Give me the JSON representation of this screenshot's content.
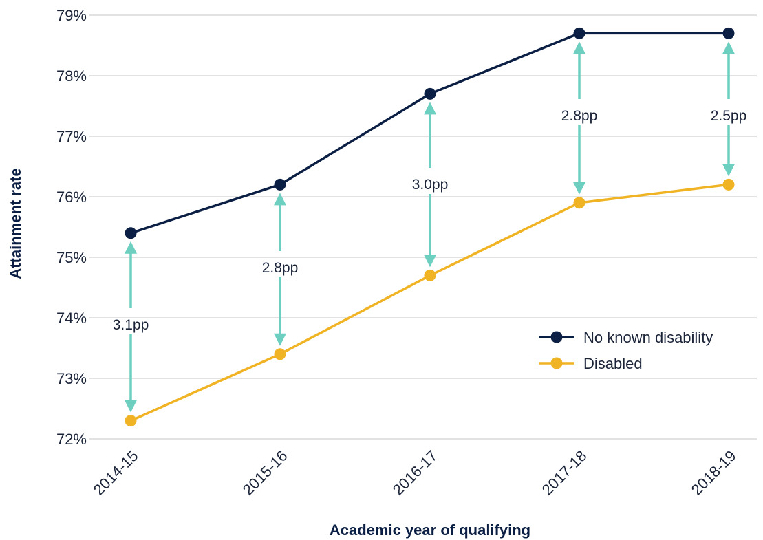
{
  "chart_data": {
    "type": "line",
    "xlabel": "Academic year of qualifying",
    "ylabel": "Attainment rate",
    "categories": [
      "2014-15",
      "2015-16",
      "2016-17",
      "2017-18",
      "2018-19"
    ],
    "ylim": [
      72,
      79
    ],
    "yticks": [
      72,
      73,
      74,
      75,
      76,
      77,
      78,
      79
    ],
    "ytick_labels": [
      "72%",
      "73%",
      "74%",
      "75%",
      "76%",
      "77%",
      "78%",
      "79%"
    ],
    "grid": true,
    "legend_position": "bottom-right",
    "series": [
      {
        "name": "No known disability",
        "color": "#0b1f44",
        "values": [
          75.4,
          76.2,
          77.7,
          78.7,
          78.7
        ]
      },
      {
        "name": "Disabled",
        "color": "#f0b323",
        "values": [
          72.3,
          73.4,
          74.7,
          75.9,
          76.2
        ]
      }
    ],
    "gap_arrow_color": "#6ccfbf",
    "gap_annotations": [
      "3.1pp",
      "2.8pp",
      "3.0pp",
      "2.8pp",
      "2.5pp"
    ]
  }
}
